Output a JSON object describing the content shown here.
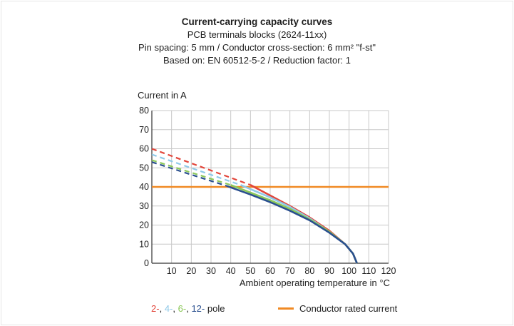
{
  "header": {
    "title": "Current-carrying capacity curves",
    "line2": "PCB terminals blocks (2624-11xx)",
    "line3": "Pin spacing: 5 mm / Conductor cross-section: 6 mm² \"f-st\"",
    "line4": "Based on: EN 60512-5-2 / Reduction factor: 1"
  },
  "legend": {
    "poles": [
      {
        "label": "2-",
        "color": "#e2453a"
      },
      {
        "label": "4-",
        "color": "#8fc9e8"
      },
      {
        "label": "6-",
        "color": "#8cc85a"
      },
      {
        "label": "12-",
        "color": "#2a4f8f"
      }
    ],
    "sep": ",",
    "pole_suffix": "pole",
    "rated_label": "Conductor rated current",
    "rated_color": "#f08a24"
  },
  "chart_data": {
    "type": "line",
    "title": "",
    "xlabel": "Ambient operating temperature in °C",
    "ylabel": "Current in A",
    "xlim": [
      0,
      120
    ],
    "ylim": [
      0,
      80
    ],
    "xticks": [
      10,
      20,
      30,
      40,
      50,
      60,
      70,
      80,
      90,
      100,
      110,
      120
    ],
    "yticks": [
      0,
      10,
      20,
      30,
      40,
      50,
      60,
      70,
      80
    ],
    "grid": true,
    "legend_position": "bottom",
    "rated_current": 40,
    "series": [
      {
        "name": "2-",
        "color": "#e2453a",
        "dashed": [
          [
            0,
            60
          ],
          [
            50,
            41
          ]
        ],
        "solid": [
          [
            50,
            41
          ],
          [
            60,
            35.5
          ],
          [
            70,
            30
          ],
          [
            80,
            24
          ],
          [
            90,
            17
          ],
          [
            98,
            10
          ],
          [
            102,
            5
          ],
          [
            104,
            0
          ]
        ]
      },
      {
        "name": "4-",
        "color": "#8fc9e8",
        "dashed": [
          [
            0,
            57
          ],
          [
            45,
            41
          ]
        ],
        "solid": [
          [
            45,
            41
          ],
          [
            60,
            34.5
          ],
          [
            70,
            29.5
          ],
          [
            80,
            23.5
          ],
          [
            90,
            16.5
          ],
          [
            98,
            10
          ],
          [
            102,
            5
          ],
          [
            104,
            0
          ]
        ]
      },
      {
        "name": "6-",
        "color": "#8cc85a",
        "dashed": [
          [
            0,
            54
          ],
          [
            40,
            41
          ]
        ],
        "solid": [
          [
            40,
            41
          ],
          [
            50,
            37
          ],
          [
            60,
            33
          ],
          [
            70,
            28.5
          ],
          [
            80,
            23
          ],
          [
            90,
            16.5
          ],
          [
            98,
            10
          ],
          [
            102,
            5
          ],
          [
            104,
            0
          ]
        ]
      },
      {
        "name": "12-",
        "color": "#2a4f8f",
        "dashed": [
          [
            0,
            53
          ],
          [
            38,
            40.5
          ]
        ],
        "solid": [
          [
            38,
            40.5
          ],
          [
            50,
            36
          ],
          [
            60,
            32
          ],
          [
            70,
            27.5
          ],
          [
            80,
            22.5
          ],
          [
            90,
            16
          ],
          [
            98,
            10
          ],
          [
            102,
            5
          ],
          [
            104,
            0
          ]
        ]
      }
    ]
  }
}
